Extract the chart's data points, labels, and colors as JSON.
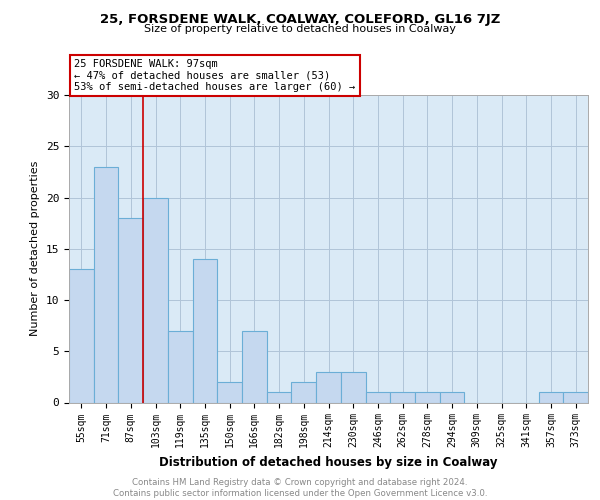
{
  "title1": "25, FORSDENE WALK, COALWAY, COLEFORD, GL16 7JZ",
  "title2": "Size of property relative to detached houses in Coalway",
  "xlabel": "Distribution of detached houses by size in Coalway",
  "ylabel": "Number of detached properties",
  "footer": "Contains HM Land Registry data © Crown copyright and database right 2024.\nContains public sector information licensed under the Open Government Licence v3.0.",
  "annotation_line1": "25 FORSDENE WALK: 97sqm",
  "annotation_line2": "← 47% of detached houses are smaller (53)",
  "annotation_line3": "53% of semi-detached houses are larger (60) →",
  "categories": [
    "55sqm",
    "71sqm",
    "87sqm",
    "103sqm",
    "119sqm",
    "135sqm",
    "150sqm",
    "166sqm",
    "182sqm",
    "198sqm",
    "214sqm",
    "230sqm",
    "246sqm",
    "262sqm",
    "278sqm",
    "294sqm",
    "309sqm",
    "325sqm",
    "341sqm",
    "357sqm",
    "373sqm"
  ],
  "values": [
    13,
    23,
    18,
    20,
    7,
    14,
    2,
    7,
    1,
    2,
    3,
    3,
    1,
    1,
    1,
    1,
    0,
    0,
    0,
    1,
    1
  ],
  "bar_color": "#c5d8ef",
  "bar_edge_color": "#6baed6",
  "vline_x": 2.5,
  "vline_color": "#cc0000",
  "background_color": "#ffffff",
  "plot_bg_color": "#daeaf6",
  "grid_color": "#b0c4d8",
  "annotation_box_color": "#ffffff",
  "annotation_border_color": "#cc0000",
  "ylim": [
    0,
    30
  ],
  "yticks": [
    0,
    5,
    10,
    15,
    20,
    25,
    30
  ]
}
